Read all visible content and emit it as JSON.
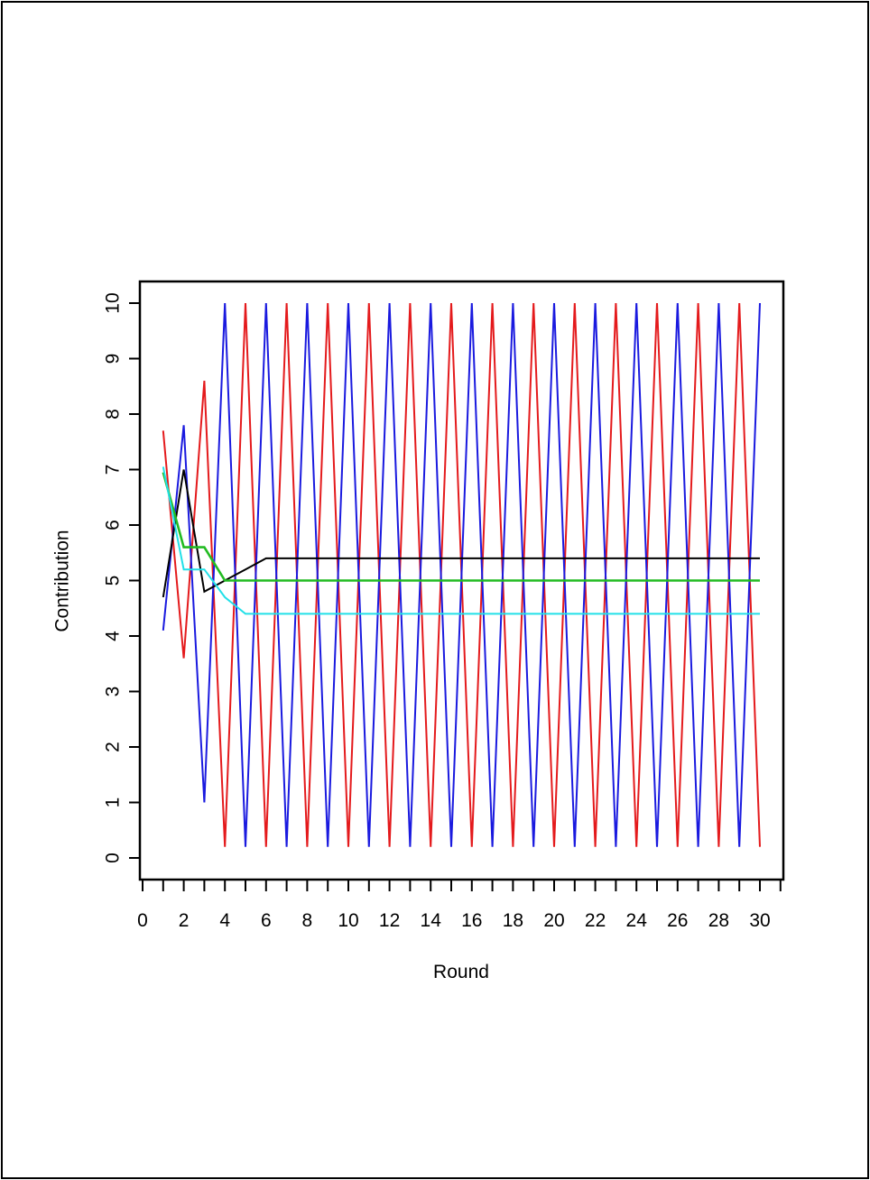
{
  "chart_data": {
    "type": "line",
    "xlabel": "Round",
    "ylabel": "Contribution",
    "xlim": [
      0,
      31
    ],
    "ylim": [
      0,
      10
    ],
    "x_ticks": [
      0,
      2,
      4,
      6,
      8,
      10,
      12,
      14,
      16,
      18,
      20,
      22,
      24,
      26,
      28,
      30
    ],
    "y_ticks": [
      0,
      1,
      2,
      3,
      4,
      5,
      6,
      7,
      8,
      9,
      10
    ],
    "grid": false,
    "legend": "none",
    "x": [
      1,
      2,
      3,
      4,
      5,
      6,
      7,
      8,
      9,
      10,
      11,
      12,
      13,
      14,
      15,
      16,
      17,
      18,
      19,
      20,
      21,
      22,
      23,
      24,
      25,
      26,
      27,
      28,
      29,
      30
    ],
    "series": [
      {
        "color": "#e41a1c",
        "values": [
          7.7,
          3.6,
          8.6,
          0.2,
          10,
          0.2,
          10,
          0.2,
          10,
          0.2,
          10,
          0.2,
          10,
          0.2,
          10,
          0.2,
          10,
          0.2,
          10,
          0.2,
          10,
          0.2,
          10,
          0.2,
          10,
          0.2,
          10,
          0.2,
          10,
          0.2
        ]
      },
      {
        "color": "#1a1adf",
        "values": [
          4.1,
          7.8,
          1.0,
          10,
          0.2,
          10,
          0.2,
          10,
          0.2,
          10,
          0.2,
          10,
          0.2,
          10,
          0.2,
          10,
          0.2,
          10,
          0.2,
          10,
          0.2,
          10,
          0.2,
          10,
          0.2,
          10,
          0.2,
          10,
          0.2,
          10
        ]
      },
      {
        "color": "#000000",
        "values": [
          4.7,
          7.0,
          4.8,
          5.0,
          5.2,
          5.4,
          5.4,
          5.4,
          5.4,
          5.4,
          5.4,
          5.4,
          5.4,
          5.4,
          5.4,
          5.4,
          5.4,
          5.4,
          5.4,
          5.4,
          5.4,
          5.4,
          5.4,
          5.4,
          5.4,
          5.4,
          5.4,
          5.4,
          5.4,
          5.4
        ]
      },
      {
        "color": "#22bb22",
        "values": [
          6.95,
          5.6,
          5.6,
          5.0,
          5.0,
          5.0,
          5.0,
          5.0,
          5.0,
          5.0,
          5.0,
          5.0,
          5.0,
          5.0,
          5.0,
          5.0,
          5.0,
          5.0,
          5.0,
          5.0,
          5.0,
          5.0,
          5.0,
          5.0,
          5.0,
          5.0,
          5.0,
          5.0,
          5.0,
          5.0
        ]
      },
      {
        "color": "#22e0e8",
        "values": [
          7.05,
          5.2,
          5.2,
          4.7,
          4.4,
          4.4,
          4.4,
          4.4,
          4.4,
          4.4,
          4.4,
          4.4,
          4.4,
          4.4,
          4.4,
          4.4,
          4.4,
          4.4,
          4.4,
          4.4,
          4.4,
          4.4,
          4.4,
          4.4,
          4.4,
          4.4,
          4.4,
          4.4,
          4.4,
          4.4
        ]
      }
    ]
  }
}
